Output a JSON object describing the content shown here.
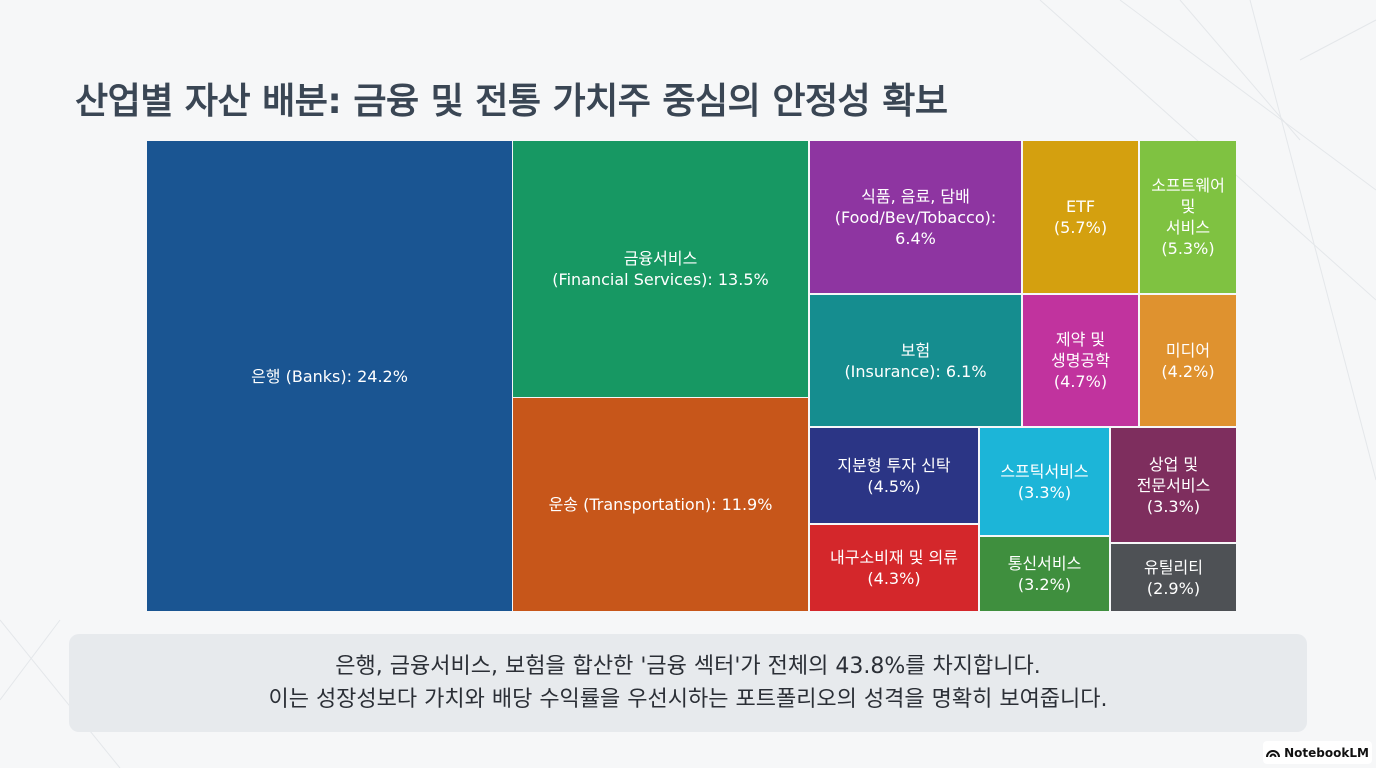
{
  "title": "산업별 자산 배분: 금융 및 전통 가치주 중심의 안정성 확보",
  "chart_data": {
    "type": "treemap",
    "title": "산업별 자산 배분: 금융 및 전통 가치주 중심의 안정성 확보",
    "unit": "%",
    "items": [
      {
        "id": "banks",
        "lines": [
          "은행 (Banks): 24.2%"
        ],
        "value": 24.2,
        "color": "#1a5592"
      },
      {
        "id": "financial-services",
        "lines": [
          "금융서비스",
          "(Financial Services): 13.5%"
        ],
        "value": 13.5,
        "color": "#179863"
      },
      {
        "id": "transportation",
        "lines": [
          "운송 (Transportation): 11.9%"
        ],
        "value": 11.9,
        "color": "#c7561a"
      },
      {
        "id": "food-bev-tobacco",
        "lines": [
          "식품, 음료, 담배",
          "(Food/Bev/Tobacco):",
          "6.4%"
        ],
        "value": 6.4,
        "color": "#8e35a1"
      },
      {
        "id": "etf",
        "lines": [
          "ETF",
          "(5.7%)"
        ],
        "value": 5.7,
        "color": "#d4a00f"
      },
      {
        "id": "software",
        "lines": [
          "소프트웨어",
          "및",
          "서비스",
          "(5.3%)"
        ],
        "value": 5.3,
        "color": "#7fc241"
      },
      {
        "id": "insurance",
        "lines": [
          "보험",
          "(Insurance): 6.1%"
        ],
        "value": 6.1,
        "color": "#158d8f"
      },
      {
        "id": "pharma",
        "lines": [
          "제약 및",
          "생명공학",
          "(4.7%)"
        ],
        "value": 4.7,
        "color": "#c1339e"
      },
      {
        "id": "media",
        "lines": [
          "미디어",
          "(4.2%)"
        ],
        "value": 4.2,
        "color": "#df922f"
      },
      {
        "id": "equity-reit",
        "lines": [
          "지분형 투자 신탁",
          "(4.5%)"
        ],
        "value": 4.5,
        "color": "#2b3585"
      },
      {
        "id": "specialty-services",
        "lines": [
          "스프틱서비스",
          "(3.3%)"
        ],
        "value": 3.3,
        "color": "#1cb5d8"
      },
      {
        "id": "commercial-services",
        "lines": [
          "상업 및",
          "전문서비스",
          "(3.3%)"
        ],
        "value": 3.3,
        "color": "#7e2e5e"
      },
      {
        "id": "consumer-durables",
        "lines": [
          "내구소비재 및 의류",
          "(4.3%)"
        ],
        "value": 4.3,
        "color": "#d4272b"
      },
      {
        "id": "telecom",
        "lines": [
          "통신서비스",
          "(3.2%)"
        ],
        "value": 3.2,
        "color": "#3f8f3e"
      },
      {
        "id": "utilities",
        "lines": [
          "유틸리티",
          "(2.9%)"
        ],
        "value": 2.9,
        "color": "#4e5155"
      }
    ]
  },
  "caption": {
    "line1": "은행, 금융서비스, 보험을 합산한 '금융 섹터'가 전체의 43.8%를 차지합니다.",
    "line2": "이는 성장성보다 가치와 배당 수익률을 우선시하는 포트폴리오의 성격을 명확히 보여줍니다."
  },
  "badge": {
    "label": "NotebookLM",
    "icon": "notebooklm-logo-icon"
  }
}
